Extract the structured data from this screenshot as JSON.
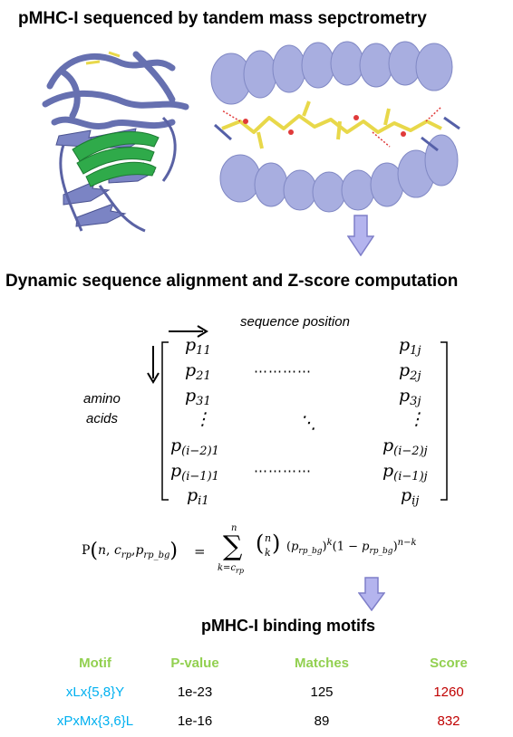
{
  "titles": {
    "section1": "pMHC-I sequenced by tandem mass sepctrometry",
    "section2": "Dynamic sequence alignment and Z-score computation",
    "section3": "pMHC-I binding motifs"
  },
  "matrix": {
    "column_label": "sequence position",
    "row_label_line1": "amino",
    "row_label_line2": "acids"
  },
  "table": {
    "headers": [
      "Motif",
      "P-value",
      "Matches",
      "Score"
    ],
    "rows": [
      {
        "motif": "xLx{5,8}Y",
        "pvalue": "1e-23",
        "matches": "125",
        "score": "1260"
      },
      {
        "motif": "xPxMx{3,6}L",
        "pvalue": "1e-16",
        "matches": "89",
        "score": "832"
      }
    ]
  },
  "colors": {
    "header_green": "#92d050",
    "motif_blue": "#00b0f0",
    "score_red": "#c00000",
    "arrow_fill": "#b4b4ee",
    "protein_blue": "#6670b0",
    "protein_green": "#2faa4a",
    "peptide_yellow": "#e8d84a"
  }
}
